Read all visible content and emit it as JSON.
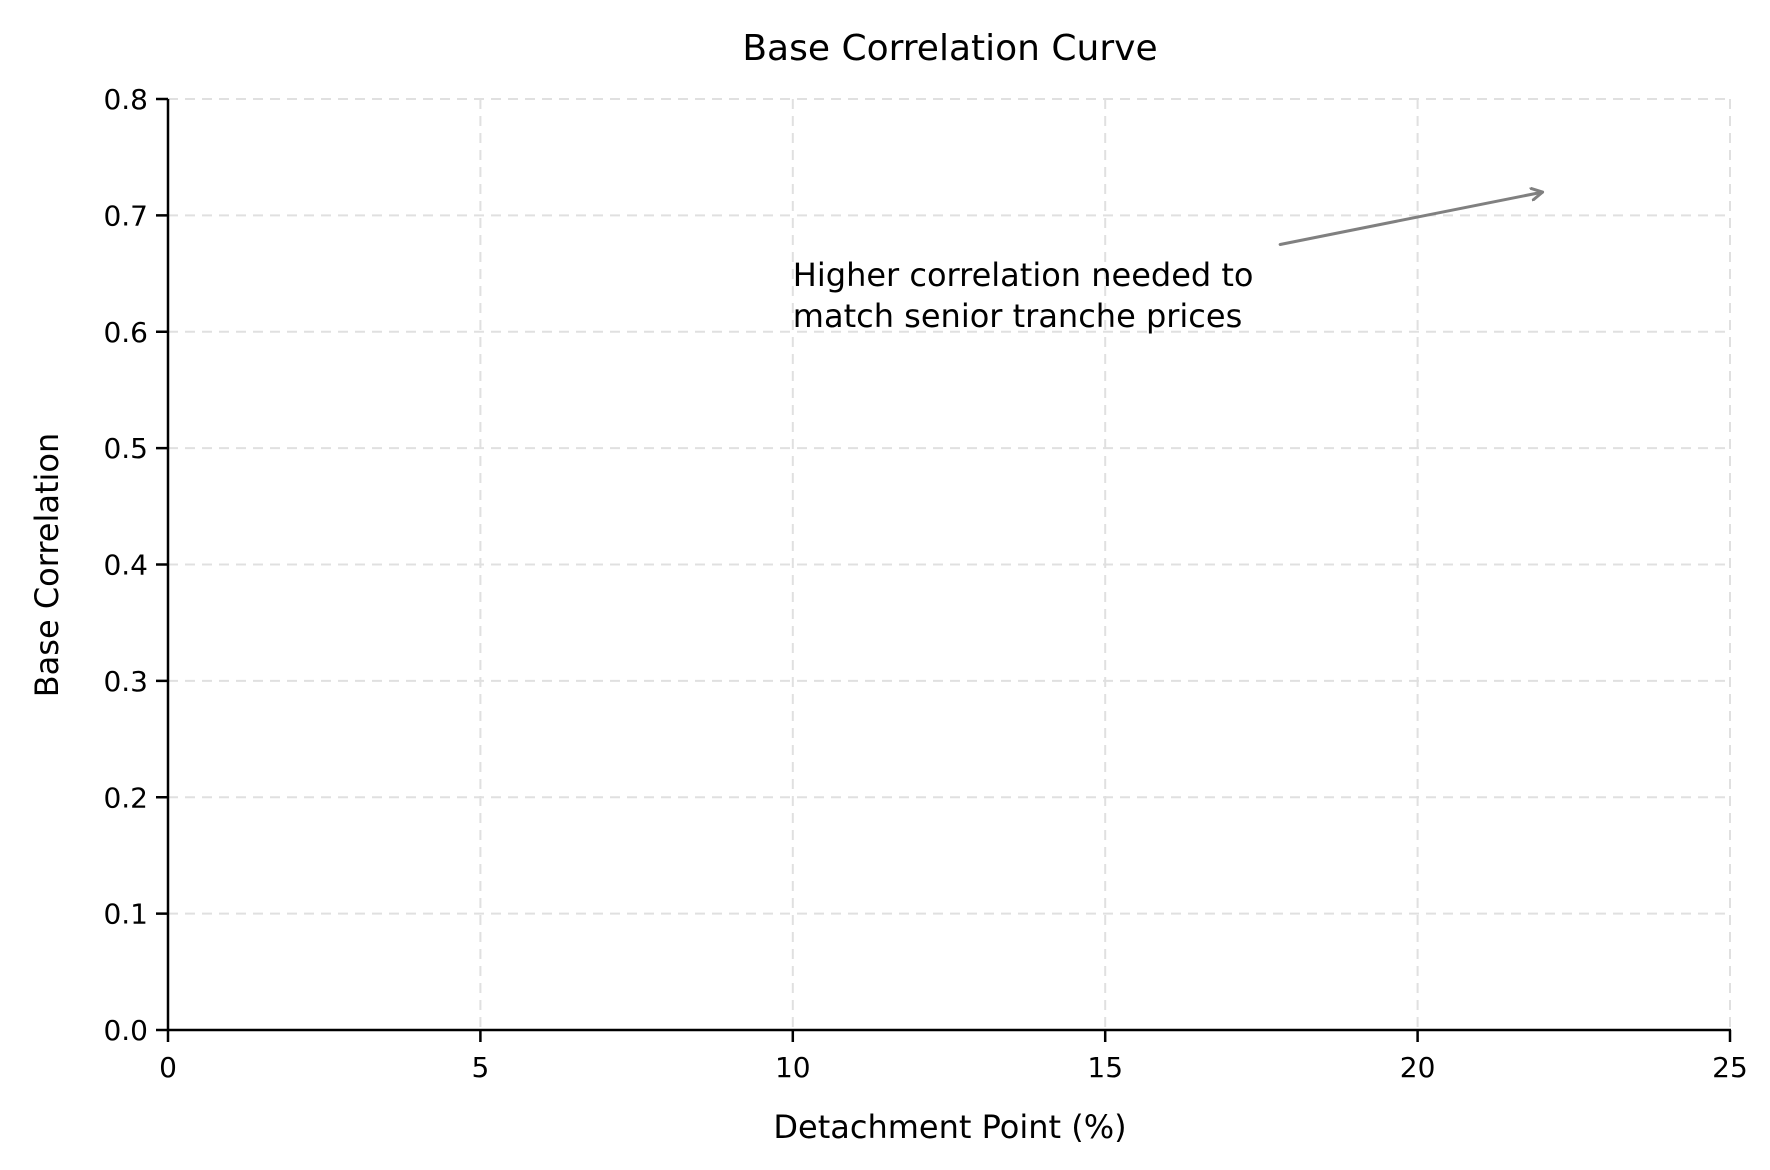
{
  "chart_data": {
    "type": "line",
    "title": "Base Correlation Curve",
    "xlabel": "Detachment Point (%)",
    "ylabel": "Base Correlation",
    "xlim": [
      0,
      25
    ],
    "ylim": [
      0,
      0.8
    ],
    "x_ticks": [
      "0",
      "5",
      "10",
      "15",
      "20",
      "25"
    ],
    "y_ticks": [
      "0.0",
      "0.1",
      "0.2",
      "0.3",
      "0.4",
      "0.5",
      "0.6",
      "0.7",
      "0.8"
    ],
    "grid": true,
    "grid_style": "dashed",
    "series": [],
    "annotations": [
      {
        "text_lines": [
          "Higher correlation needed to",
          "match senior tranche prices"
        ],
        "text_xy": [
          10,
          0.66
        ],
        "arrow_from": [
          17.8,
          0.675
        ],
        "arrow_to": [
          22,
          0.72
        ],
        "arrow_color": "#808080"
      }
    ]
  },
  "colors": {
    "axis": "#000000",
    "grid": "#e0e0e0",
    "arrow": "#808080",
    "background": "#ffffff"
  }
}
